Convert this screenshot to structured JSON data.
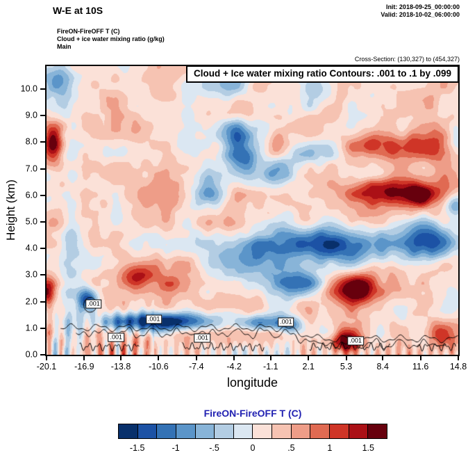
{
  "header": {
    "section_title": "W-E at 10S",
    "init_line": "Init: 2018-09-25_00:00:00",
    "valid_line": "Valid: 2018-10-02_06:00:00",
    "field_line1": "FireON-FireOFF T   (C)",
    "field_line2": "Cloud + ice water mixing ratio   (g/kg)",
    "field_line3": "Main",
    "cross_section": "Cross-Section: (130,327) to (454,327)"
  },
  "colorbar": {
    "title": "FireON-FireOFF T  (C)",
    "title_color": "#2222b2",
    "tick_labels": [
      "-1.5",
      "-1",
      "-.5",
      "0",
      ".5",
      "1",
      "1.5"
    ]
  },
  "chart_data": {
    "type": "heatmap",
    "subtype": "filled-contour-vertical-cross-section",
    "title": "Cloud + Ice water mixing ratio Contours: .001 to .1 by .099",
    "xlabel": "longitude",
    "ylabel": "Height (km)",
    "xlim": [
      -20.1,
      14.8
    ],
    "ylim": [
      0,
      10.86
    ],
    "x_ticks": [
      {
        "label": "-20.1",
        "value": -20.1
      },
      {
        "label": "-16.9",
        "value": -16.9
      },
      {
        "label": "-13.8",
        "value": -13.8
      },
      {
        "label": "-10.6",
        "value": -10.6
      },
      {
        "label": "-7.4",
        "value": -7.4
      },
      {
        "label": "-4.2",
        "value": -4.2
      },
      {
        "label": "-1.1",
        "value": -1.1
      },
      {
        "label": "2.1",
        "value": 2.1
      },
      {
        "label": "5.3",
        "value": 5.3
      },
      {
        "label": "8.4",
        "value": 8.4
      },
      {
        "label": "11.6",
        "value": 11.6
      },
      {
        "label": "14.8",
        "value": 14.8
      }
    ],
    "y_ticks": [
      {
        "label": "0.0",
        "value": 0
      },
      {
        "label": "1.0",
        "value": 1
      },
      {
        "label": "2.0",
        "value": 2
      },
      {
        "label": "3.0",
        "value": 3
      },
      {
        "label": "4.0",
        "value": 4
      },
      {
        "label": "5.0",
        "value": 5
      },
      {
        "label": "6.0",
        "value": 6
      },
      {
        "label": "7.0",
        "value": 7
      },
      {
        "label": "8.0",
        "value": 8
      },
      {
        "label": "9.0",
        "value": 9
      },
      {
        "label": "10.0",
        "value": 10
      }
    ],
    "shading": {
      "variable": "FireON-FireOFF T (C)",
      "levels": [
        -1.75,
        -1.5,
        -1.25,
        -1.0,
        -0.75,
        -0.5,
        -0.25,
        0.0,
        0.25,
        0.5,
        0.75,
        1.0,
        1.25,
        1.5,
        1.75
      ],
      "colors": [
        "#08306b",
        "#1c52a5",
        "#3472b5",
        "#5b95c9",
        "#88b4d8",
        "#b3cde3",
        "#dbe7f2",
        "#fbe1d8",
        "#f6c3b2",
        "#ee9d88",
        "#e06a52",
        "#cf3527",
        "#ab1016",
        "#67000d"
      ]
    },
    "cloud_contours": {
      "levels_text": ".001 to .1 by .099",
      "label_text": ".001",
      "label_positions": [
        {
          "lon": -16.1,
          "km": 1.91
        },
        {
          "lon": -11.0,
          "km": 1.33
        },
        {
          "lon": -14.2,
          "km": 0.65
        },
        {
          "lon": -6.9,
          "km": 0.63
        },
        {
          "lon": 0.2,
          "km": 1.23
        },
        {
          "lon": 6.1,
          "km": 0.52
        }
      ],
      "lines": {
        "main": {
          "start": -18.9,
          "end": 14.8
        },
        "secondary": {
          "start": -17.6,
          "end": 13.8
        },
        "bottom_segments": [
          [
            -17.3,
            -12.2
          ],
          [
            -8.6,
            -1.6
          ],
          [
            2.2,
            9.0
          ],
          [
            11.3,
            14.6
          ]
        ],
        "loop": {
          "lon": -16.4,
          "km": 1.88,
          "rx": 0.55,
          "ry": 0.28
        }
      }
    },
    "field_approx": {
      "base": 0.22,
      "blobs": [
        [
          -10.5,
          1.25,
          5.0,
          0.35,
          -2.2
        ],
        [
          -2.0,
          1.2,
          1.6,
          0.3,
          -1.5
        ],
        [
          0.5,
          1.15,
          1.2,
          0.3,
          -1.4
        ],
        [
          -16.6,
          2.05,
          0.9,
          0.45,
          -1.8
        ],
        [
          4.0,
          4.1,
          6.5,
          0.75,
          -1.5
        ],
        [
          12.0,
          4.3,
          2.5,
          0.8,
          -1.2
        ],
        [
          -3.0,
          3.6,
          2.5,
          0.7,
          -1.1
        ],
        [
          1.0,
          2.7,
          2.8,
          0.55,
          -1.3
        ],
        [
          -3.5,
          7.4,
          1.6,
          0.8,
          -1.3
        ],
        [
          -0.5,
          6.9,
          1.2,
          0.6,
          -0.9
        ],
        [
          9.5,
          6.1,
          4.5,
          0.55,
          1.5
        ],
        [
          11.6,
          6.0,
          1.0,
          0.45,
          0.9
        ],
        [
          12.0,
          7.8,
          2.5,
          0.6,
          1.1
        ],
        [
          8.0,
          7.9,
          2.0,
          0.5,
          0.9
        ],
        [
          -19.6,
          8.0,
          0.9,
          0.8,
          1.6
        ],
        [
          -12.3,
          2.9,
          1.6,
          0.55,
          1.4
        ],
        [
          -9.8,
          2.6,
          1.0,
          0.45,
          1.0
        ],
        [
          6.5,
          2.5,
          2.2,
          0.6,
          1.7
        ],
        [
          5.3,
          0.5,
          1.2,
          0.45,
          1.5
        ],
        [
          13.5,
          0.8,
          1.2,
          0.5,
          1.4
        ],
        [
          -19.0,
          10.4,
          1.3,
          0.9,
          -0.9
        ],
        [
          -5.0,
          10.2,
          2.0,
          0.7,
          -0.6
        ],
        [
          3.0,
          9.9,
          1.5,
          0.6,
          -0.5
        ],
        [
          -20.0,
          2.3,
          0.7,
          0.6,
          1.3
        ],
        [
          -18.0,
          5.0,
          0.8,
          3.5,
          -0.55
        ],
        [
          -6.5,
          6.2,
          1.5,
          0.7,
          -0.8
        ],
        [
          2.0,
          7.6,
          1.5,
          0.5,
          -0.7
        ],
        [
          -0.5,
          7.8,
          0.9,
          0.5,
          1.0
        ],
        [
          14.5,
          5.6,
          0.8,
          0.5,
          -1.2
        ],
        [
          14.6,
          8.2,
          0.8,
          0.5,
          -0.9
        ],
        [
          -4.2,
          8.3,
          1.2,
          0.5,
          -0.8
        ]
      ],
      "noise": {
        "sx": 2.0,
        "sy": 0.85,
        "amp1": 0.75,
        "amp2": 0.35
      },
      "stripes_left": {
        "kmax": 2.3,
        "lonmax": -11,
        "freq": 6.0,
        "amp": 0.5
      },
      "stripes_bottom": {
        "kmax": 0.7,
        "freq": 7.0,
        "amp": 0.35
      }
    }
  }
}
